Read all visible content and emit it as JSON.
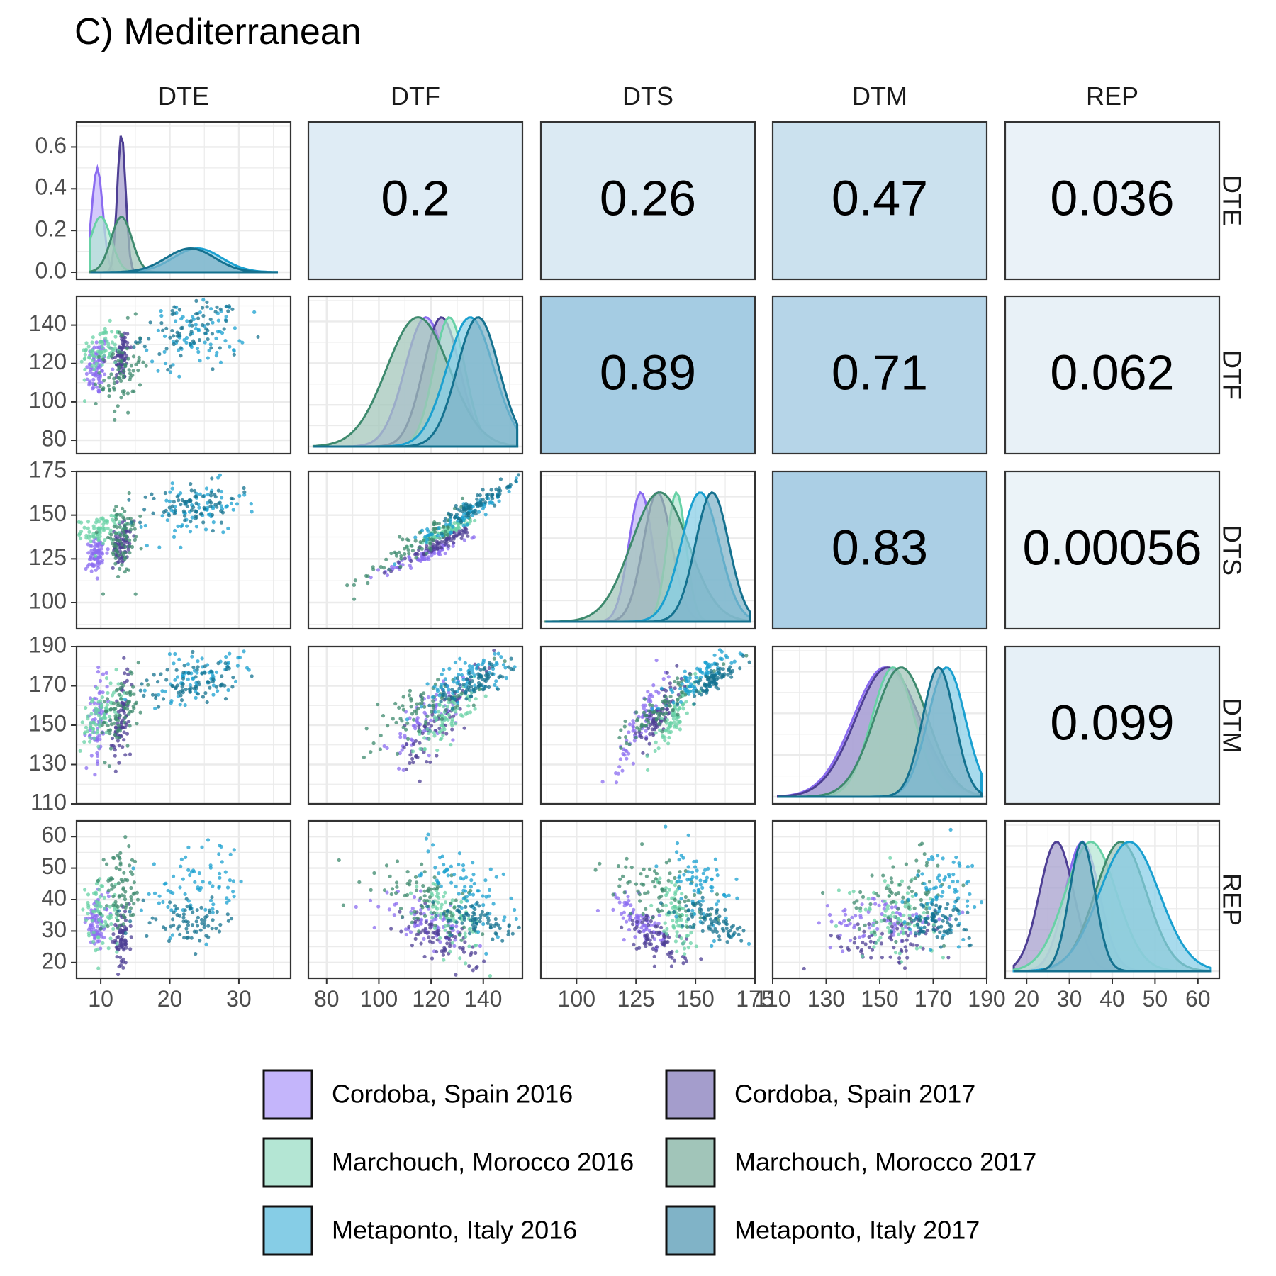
{
  "title": "C) Mediterranean",
  "chart_data": {
    "type": "scatter",
    "kind": "pairs-matrix",
    "variables": [
      "DTE",
      "DTF",
      "DTS",
      "DTM",
      "REP"
    ],
    "axis_ranges": {
      "DTE": [
        6.5,
        37.5
      ],
      "DTF": [
        73,
        155
      ],
      "DTS": [
        85,
        175
      ],
      "DTM": [
        110,
        190
      ],
      "REP": [
        15,
        65
      ]
    },
    "axis_ticks": {
      "DTE": [
        10,
        20,
        30
      ],
      "DTF": [
        80,
        100,
        120,
        140
      ],
      "DTS": [
        100,
        125,
        150,
        175
      ],
      "DTM": [
        110,
        130,
        150,
        170,
        190
      ],
      "REP": [
        20,
        30,
        40,
        50,
        60
      ]
    },
    "density_axis": {
      "range": [
        0,
        0.7
      ],
      "ticks": [
        "0.0",
        "0.2",
        "0.4",
        "0.6"
      ]
    },
    "correlations": [
      {
        "row": "DTE",
        "col": "DTF",
        "label": "0.2",
        "value": 0.2
      },
      {
        "row": "DTE",
        "col": "DTS",
        "label": "0.26",
        "value": 0.26
      },
      {
        "row": "DTE",
        "col": "DTM",
        "label": "0.47",
        "value": 0.47
      },
      {
        "row": "DTE",
        "col": "REP",
        "label": "0.036",
        "value": 0.036
      },
      {
        "row": "DTF",
        "col": "DTS",
        "label": "0.89",
        "value": 0.89
      },
      {
        "row": "DTF",
        "col": "DTM",
        "label": "0.71",
        "value": 0.71
      },
      {
        "row": "DTF",
        "col": "REP",
        "label": "0.062",
        "value": 0.062
      },
      {
        "row": "DTS",
        "col": "DTM",
        "label": "0.83",
        "value": 0.83
      },
      {
        "row": "DTS",
        "col": "REP",
        "label": "0.00056",
        "value": 0.00056
      },
      {
        "row": "DTM",
        "col": "REP",
        "label": "0.099",
        "value": 0.099
      }
    ],
    "series": [
      {
        "name": "Cordoba, Spain 2016",
        "color": "#8b6cf0",
        "fill": "#c4b5fb",
        "mean": {
          "DTE": 9.5,
          "DTF": 118,
          "DTS": 127,
          "DTM": 152,
          "REP": 33
        },
        "sd": {
          "DTE": 0.8,
          "DTF": 8,
          "DTS": 5,
          "DTM": 12,
          "REP": 4
        }
      },
      {
        "name": "Cordoba, Spain 2017",
        "color": "#4e3f94",
        "fill": "#a49dcc",
        "mean": {
          "DTE": 13,
          "DTF": 124,
          "DTS": 134,
          "DTM": 153,
          "REP": 27
        },
        "sd": {
          "DTE": 0.6,
          "DTF": 7,
          "DTS": 6,
          "DTM": 12,
          "REP": 4
        }
      },
      {
        "name": "Marchouch, Morocco 2016",
        "color": "#68d1a6",
        "fill": "#b4e6d4",
        "mean": {
          "DTE": 10,
          "DTF": 127,
          "DTS": 142,
          "DTM": 155,
          "REP": 35
        },
        "sd": {
          "DTE": 1.5,
          "DTF": 6,
          "DTS": 4,
          "DTM": 8,
          "REP": 6
        }
      },
      {
        "name": "Marchouch, Morocco 2017",
        "color": "#3e8a6e",
        "fill": "#a1c5b9",
        "mean": {
          "DTE": 13,
          "DTF": 115,
          "DTS": 135,
          "DTM": 158,
          "REP": 42
        },
        "sd": {
          "DTE": 1.5,
          "DTF": 12,
          "DTS": 12,
          "DTM": 10,
          "REP": 6
        }
      },
      {
        "name": "Metaponto, Italy 2016",
        "color": "#1aa0d0",
        "fill": "#86cde6",
        "mean": {
          "DTE": 24,
          "DTF": 135,
          "DTS": 152,
          "DTM": 175,
          "REP": 44
        },
        "sd": {
          "DTE": 3.5,
          "DTF": 9,
          "DTS": 8,
          "DTM": 7,
          "REP": 7
        }
      },
      {
        "name": "Metaponto, Italy 2017",
        "color": "#14718f",
        "fill": "#80b3c7",
        "mean": {
          "DTE": 23,
          "DTF": 138,
          "DTS": 157,
          "DTM": 172,
          "REP": 33
        },
        "sd": {
          "DTE": 3.5,
          "DTF": 8,
          "DTS": 7,
          "DTM": 6,
          "REP": 3
        }
      }
    ],
    "legend_position": "bottom",
    "grid": true
  }
}
